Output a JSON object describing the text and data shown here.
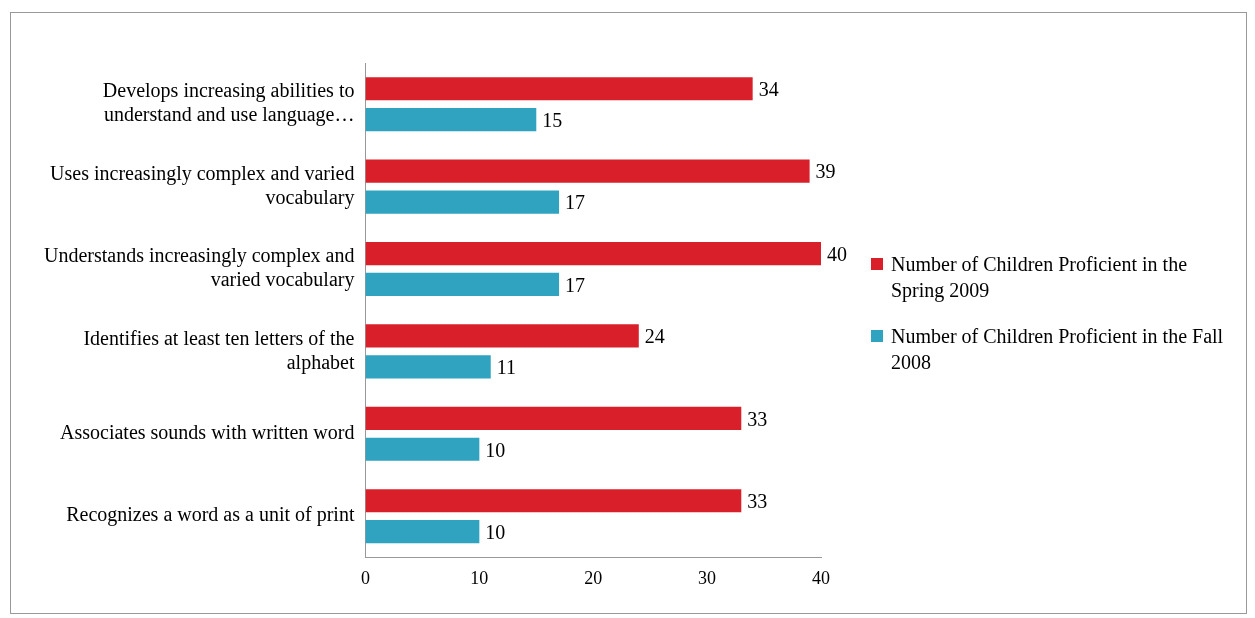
{
  "chart_data": {
    "type": "bar",
    "orientation": "horizontal",
    "categories": [
      "Develops increasing abilities to understand and use language…",
      "Uses increasingly complex and varied vocabulary",
      "Understands increasingly complex and varied vocabulary",
      "Identifies at least ten letters of the alphabet",
      "Associates sounds with written word",
      "Recognizes a word as a unit of print"
    ],
    "series": [
      {
        "name": "Number of Children Proficient in the Spring 2009",
        "color": "#d9202a",
        "values": [
          34,
          39,
          40,
          24,
          33,
          33
        ]
      },
      {
        "name": "Number of Children Proficient in the Fall 2008",
        "color": "#2fa3c0",
        "values": [
          15,
          17,
          17,
          11,
          10,
          10
        ]
      }
    ],
    "xlim": [
      0,
      40
    ],
    "xticks": [
      0,
      10,
      20,
      30,
      40
    ],
    "data_labels": true,
    "legend": "right",
    "grid": false
  }
}
